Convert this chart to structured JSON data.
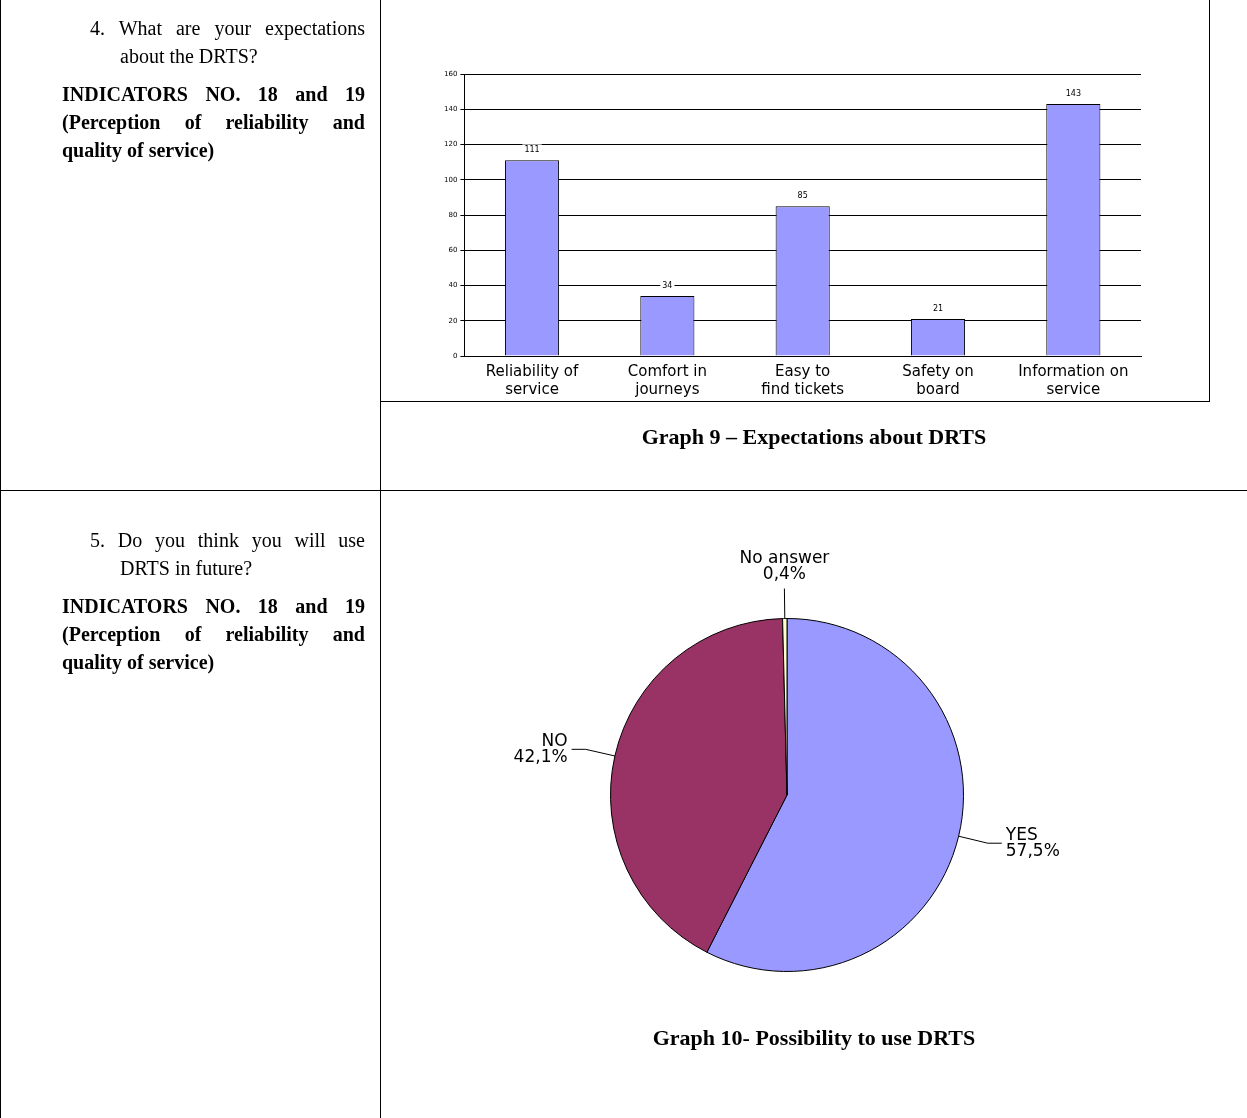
{
  "chart_data": [
    {
      "type": "bar",
      "title": "Graph 9 – Expectations about DRTS",
      "annotations": [
        "4. What are your expectations about the DRTS?",
        "INDICATORS NO. 18 and 19 (Perception of reliability and quality of service)"
      ],
      "categories": [
        "Reliability of service",
        "Comfort in journeys",
        "Easy to find tickets",
        "Safety on board",
        "Information on service"
      ],
      "values": [
        111,
        34,
        85,
        21,
        143
      ],
      "color": "#9999ff",
      "ylim": [
        0,
        160
      ],
      "yticks": [
        0,
        20,
        40,
        60,
        80,
        100,
        120,
        140,
        160
      ],
      "grid": "y",
      "legend": false,
      "data_labels": true
    },
    {
      "type": "pie",
      "title": "Graph 10- Possibility to use DRTS",
      "annotations": [
        "5. Do you think you will use DRTS in future?",
        "INDICATORS NO. 18 and 19 (Perception of reliability and quality of service)"
      ],
      "categories": [
        "YES",
        "NO",
        "No answer"
      ],
      "values": [
        57.5,
        42.1,
        0.4
      ],
      "colors": [
        "#9999ff",
        "#993366",
        "#ffffcc"
      ],
      "value_labels": [
        "57,5%",
        "42,1%",
        "0,4%"
      ],
      "legend": false
    }
  ]
}
